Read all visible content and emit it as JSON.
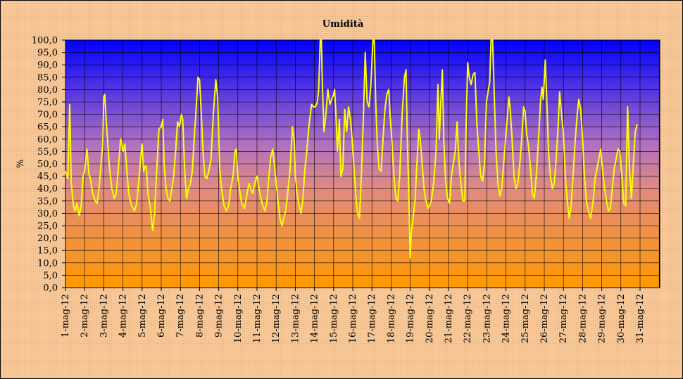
{
  "chart_data": {
    "type": "line",
    "title": "Umidità",
    "ylabel": "%",
    "xlabel": "",
    "ylim": [
      0,
      100
    ],
    "y_ticks": [
      "0,0",
      "5,0",
      "10,0",
      "15,0",
      "20,0",
      "25,0",
      "30,0",
      "35,0",
      "40,0",
      "45,0",
      "50,0",
      "55,0",
      "60,0",
      "65,0",
      "70,0",
      "75,0",
      "80,0",
      "85,0",
      "90,0",
      "95,0",
      "100,0"
    ],
    "categories": [
      "1-mag-12",
      "2-mag-12",
      "3-mag-12",
      "4-mag-12",
      "5-mag-12",
      "6-mag-12",
      "7-mag-12",
      "8-mag-12",
      "9-mag-12",
      "10-mag-12",
      "11-mag-12",
      "12-mag-12",
      "13-mag-12",
      "14-mag-12",
      "15-mag-12",
      "16-mag-12",
      "17-mag-12",
      "18-mag-12",
      "19-mag-12",
      "20-mag-12",
      "21-mag-12",
      "22-mag-12",
      "23-mag-12",
      "24-mag-12",
      "25-mag-12",
      "26-mag-12",
      "27-mag-12",
      "28-mag-12",
      "29-mag-12",
      "30-mag-12",
      "31-mag-12"
    ],
    "grid": true,
    "legend": "none",
    "colors": {
      "line": "#ffff00",
      "plot_top": "#0000ff",
      "plot_bottom": "#ff9900",
      "background": "#ffcc99"
    },
    "series": [
      {
        "values": [
          [
            0.0,
            47
          ],
          [
            0.12,
            44
          ],
          [
            0.22,
            74
          ],
          [
            0.3,
            42
          ],
          [
            0.42,
            33
          ],
          [
            0.5,
            31
          ],
          [
            0.6,
            34
          ],
          [
            0.72,
            29
          ],
          [
            0.82,
            33
          ],
          [
            0.92,
            45
          ],
          [
            1.0,
            47
          ],
          [
            1.12,
            56
          ],
          [
            1.22,
            46
          ],
          [
            1.3,
            44
          ],
          [
            1.42,
            38
          ],
          [
            1.55,
            35
          ],
          [
            1.65,
            34
          ],
          [
            1.75,
            40
          ],
          [
            1.88,
            52
          ],
          [
            1.95,
            58
          ],
          [
            2.0,
            77
          ],
          [
            2.05,
            78
          ],
          [
            2.12,
            68
          ],
          [
            2.22,
            57
          ],
          [
            2.3,
            48
          ],
          [
            2.42,
            40
          ],
          [
            2.55,
            36
          ],
          [
            2.65,
            38
          ],
          [
            2.78,
            50
          ],
          [
            2.88,
            60
          ],
          [
            2.95,
            58
          ],
          [
            3.02,
            55
          ],
          [
            3.1,
            58
          ],
          [
            3.2,
            48
          ],
          [
            3.3,
            38
          ],
          [
            3.45,
            33
          ],
          [
            3.6,
            31
          ],
          [
            3.72,
            34
          ],
          [
            3.85,
            45
          ],
          [
            3.92,
            52
          ],
          [
            4.0,
            58
          ],
          [
            4.08,
            47
          ],
          [
            4.15,
            49
          ],
          [
            4.22,
            49
          ],
          [
            4.3,
            38
          ],
          [
            4.42,
            33
          ],
          [
            4.55,
            23
          ],
          [
            4.65,
            30
          ],
          [
            4.78,
            50
          ],
          [
            4.88,
            64
          ],
          [
            5.0,
            65
          ],
          [
            5.08,
            68
          ],
          [
            5.15,
            50
          ],
          [
            5.25,
            40
          ],
          [
            5.35,
            36
          ],
          [
            5.45,
            35
          ],
          [
            5.55,
            40
          ],
          [
            5.65,
            45
          ],
          [
            5.75,
            55
          ],
          [
            5.85,
            67
          ],
          [
            5.95,
            65
          ],
          [
            6.05,
            70
          ],
          [
            6.12,
            68
          ],
          [
            6.22,
            48
          ],
          [
            6.32,
            36
          ],
          [
            6.42,
            40
          ],
          [
            6.52,
            42
          ],
          [
            6.62,
            47
          ],
          [
            6.72,
            60
          ],
          [
            6.82,
            72
          ],
          [
            6.92,
            85
          ],
          [
            7.0,
            84
          ],
          [
            7.08,
            72
          ],
          [
            7.18,
            55
          ],
          [
            7.28,
            45
          ],
          [
            7.38,
            44
          ],
          [
            7.48,
            47
          ],
          [
            7.6,
            52
          ],
          [
            7.72,
            70
          ],
          [
            7.85,
            84
          ],
          [
            7.95,
            77
          ],
          [
            8.05,
            48
          ],
          [
            8.15,
            40
          ],
          [
            8.28,
            33
          ],
          [
            8.4,
            31
          ],
          [
            8.52,
            33
          ],
          [
            8.62,
            40
          ],
          [
            8.75,
            45
          ],
          [
            8.85,
            55
          ],
          [
            8.92,
            56
          ],
          [
            9.0,
            45
          ],
          [
            9.08,
            40
          ],
          [
            9.2,
            34
          ],
          [
            9.35,
            32
          ],
          [
            9.48,
            38
          ],
          [
            9.58,
            42
          ],
          [
            9.68,
            40
          ],
          [
            9.78,
            38
          ],
          [
            9.88,
            42
          ],
          [
            9.95,
            44
          ],
          [
            10.0,
            45
          ],
          [
            10.08,
            41
          ],
          [
            10.18,
            37
          ],
          [
            10.3,
            33
          ],
          [
            10.42,
            31
          ],
          [
            10.52,
            35
          ],
          [
            10.62,
            45
          ],
          [
            10.72,
            53
          ],
          [
            10.82,
            56
          ],
          [
            10.9,
            50
          ],
          [
            11.0,
            42
          ],
          [
            11.1,
            35
          ],
          [
            11.2,
            28
          ],
          [
            11.3,
            25
          ],
          [
            11.4,
            28
          ],
          [
            11.5,
            31
          ],
          [
            11.6,
            38
          ],
          [
            11.72,
            47
          ],
          [
            11.85,
            65
          ],
          [
            11.95,
            59
          ],
          [
            12.0,
            45
          ],
          [
            12.1,
            38
          ],
          [
            12.2,
            33
          ],
          [
            12.3,
            30
          ],
          [
            12.4,
            36
          ],
          [
            12.5,
            48
          ],
          [
            12.6,
            55
          ],
          [
            12.72,
            66
          ],
          [
            12.85,
            74
          ],
          [
            12.95,
            73
          ],
          [
            13.05,
            73
          ],
          [
            13.15,
            75
          ],
          [
            13.22,
            80
          ],
          [
            13.3,
            100
          ],
          [
            13.36,
            100
          ],
          [
            13.42,
            80
          ],
          [
            13.5,
            63
          ],
          [
            13.6,
            70
          ],
          [
            13.7,
            80
          ],
          [
            13.8,
            74
          ],
          [
            13.9,
            76
          ],
          [
            14.0,
            78
          ],
          [
            14.05,
            80
          ],
          [
            14.12,
            70
          ],
          [
            14.2,
            55
          ],
          [
            14.3,
            68
          ],
          [
            14.38,
            45
          ],
          [
            14.48,
            48
          ],
          [
            14.58,
            72
          ],
          [
            14.68,
            63
          ],
          [
            14.78,
            73
          ],
          [
            14.88,
            68
          ],
          [
            14.95,
            62
          ],
          [
            15.05,
            50
          ],
          [
            15.15,
            38
          ],
          [
            15.25,
            30
          ],
          [
            15.35,
            28
          ],
          [
            15.45,
            45
          ],
          [
            15.55,
            68
          ],
          [
            15.65,
            95
          ],
          [
            15.75,
            75
          ],
          [
            15.85,
            73
          ],
          [
            15.95,
            82
          ],
          [
            16.05,
            100
          ],
          [
            16.12,
            100
          ],
          [
            16.2,
            75
          ],
          [
            16.28,
            58
          ],
          [
            16.38,
            48
          ],
          [
            16.48,
            47
          ],
          [
            16.58,
            60
          ],
          [
            16.68,
            72
          ],
          [
            16.78,
            78
          ],
          [
            16.88,
            80
          ],
          [
            16.95,
            70
          ],
          [
            17.05,
            58
          ],
          [
            17.15,
            45
          ],
          [
            17.25,
            36
          ],
          [
            17.35,
            35
          ],
          [
            17.45,
            45
          ],
          [
            17.58,
            70
          ],
          [
            17.7,
            85
          ],
          [
            17.78,
            88
          ],
          [
            17.85,
            60
          ],
          [
            17.92,
            40
          ],
          [
            18.0,
            12
          ],
          [
            18.05,
            22
          ],
          [
            18.15,
            28
          ],
          [
            18.25,
            35
          ],
          [
            18.35,
            50
          ],
          [
            18.45,
            64
          ],
          [
            18.52,
            60
          ],
          [
            18.62,
            50
          ],
          [
            18.72,
            40
          ],
          [
            18.82,
            35
          ],
          [
            18.92,
            32
          ],
          [
            19.0,
            33
          ],
          [
            19.1,
            35
          ],
          [
            19.22,
            42
          ],
          [
            19.35,
            55
          ],
          [
            19.45,
            82
          ],
          [
            19.52,
            60
          ],
          [
            19.6,
            75
          ],
          [
            19.68,
            88
          ],
          [
            19.75,
            60
          ],
          [
            19.85,
            43
          ],
          [
            19.95,
            36
          ],
          [
            20.05,
            34
          ],
          [
            20.15,
            45
          ],
          [
            20.25,
            50
          ],
          [
            20.35,
            55
          ],
          [
            20.45,
            67
          ],
          [
            20.55,
            50
          ],
          [
            20.65,
            42
          ],
          [
            20.75,
            35
          ],
          [
            20.85,
            35
          ],
          [
            20.92,
            65
          ],
          [
            21.0,
            91
          ],
          [
            21.08,
            85
          ],
          [
            21.18,
            82
          ],
          [
            21.28,
            86
          ],
          [
            21.38,
            87
          ],
          [
            21.48,
            66
          ],
          [
            21.58,
            55
          ],
          [
            21.68,
            45
          ],
          [
            21.78,
            43
          ],
          [
            21.88,
            50
          ],
          [
            21.98,
            75
          ],
          [
            22.08,
            80
          ],
          [
            22.15,
            83
          ],
          [
            22.22,
            100
          ],
          [
            22.3,
            100
          ],
          [
            22.38,
            80
          ],
          [
            22.48,
            55
          ],
          [
            22.58,
            42
          ],
          [
            22.68,
            37
          ],
          [
            22.78,
            40
          ],
          [
            22.88,
            50
          ],
          [
            22.98,
            60
          ],
          [
            23.08,
            70
          ],
          [
            23.15,
            77
          ],
          [
            23.22,
            72
          ],
          [
            23.32,
            60
          ],
          [
            23.42,
            45
          ],
          [
            23.52,
            40
          ],
          [
            23.62,
            42
          ],
          [
            23.72,
            50
          ],
          [
            23.82,
            60
          ],
          [
            23.92,
            73
          ],
          [
            24.0,
            71
          ],
          [
            24.08,
            62
          ],
          [
            24.18,
            57
          ],
          [
            24.28,
            48
          ],
          [
            24.38,
            38
          ],
          [
            24.48,
            36
          ],
          [
            24.58,
            45
          ],
          [
            24.7,
            60
          ],
          [
            24.8,
            75
          ],
          [
            24.88,
            81
          ],
          [
            24.95,
            76
          ],
          [
            25.05,
            92
          ],
          [
            25.12,
            78
          ],
          [
            25.22,
            55
          ],
          [
            25.32,
            45
          ],
          [
            25.42,
            40
          ],
          [
            25.52,
            42
          ],
          [
            25.62,
            52
          ],
          [
            25.72,
            65
          ],
          [
            25.8,
            79
          ],
          [
            25.9,
            70
          ],
          [
            26.0,
            62
          ],
          [
            26.1,
            45
          ],
          [
            26.2,
            35
          ],
          [
            26.3,
            28
          ],
          [
            26.4,
            33
          ],
          [
            26.5,
            45
          ],
          [
            26.62,
            60
          ],
          [
            26.72,
            70
          ],
          [
            26.8,
            76
          ],
          [
            26.9,
            72
          ],
          [
            27.0,
            60
          ],
          [
            27.1,
            45
          ],
          [
            27.2,
            35
          ],
          [
            27.3,
            31
          ],
          [
            27.42,
            28
          ],
          [
            27.55,
            35
          ],
          [
            27.65,
            44
          ],
          [
            27.75,
            48
          ],
          [
            27.85,
            52
          ],
          [
            27.95,
            56
          ],
          [
            28.05,
            47
          ],
          [
            28.15,
            40
          ],
          [
            28.25,
            35
          ],
          [
            28.35,
            31
          ],
          [
            28.45,
            32
          ],
          [
            28.55,
            40
          ],
          [
            28.65,
            48
          ],
          [
            28.75,
            52
          ],
          [
            28.85,
            56
          ],
          [
            28.95,
            55
          ],
          [
            29.05,
            45
          ],
          [
            29.15,
            34
          ],
          [
            29.25,
            33
          ],
          [
            29.35,
            73
          ],
          [
            29.45,
            48
          ],
          [
            29.55,
            36
          ],
          [
            29.65,
            50
          ],
          [
            29.75,
            63
          ],
          [
            29.85,
            66
          ]
        ]
      }
    ]
  }
}
